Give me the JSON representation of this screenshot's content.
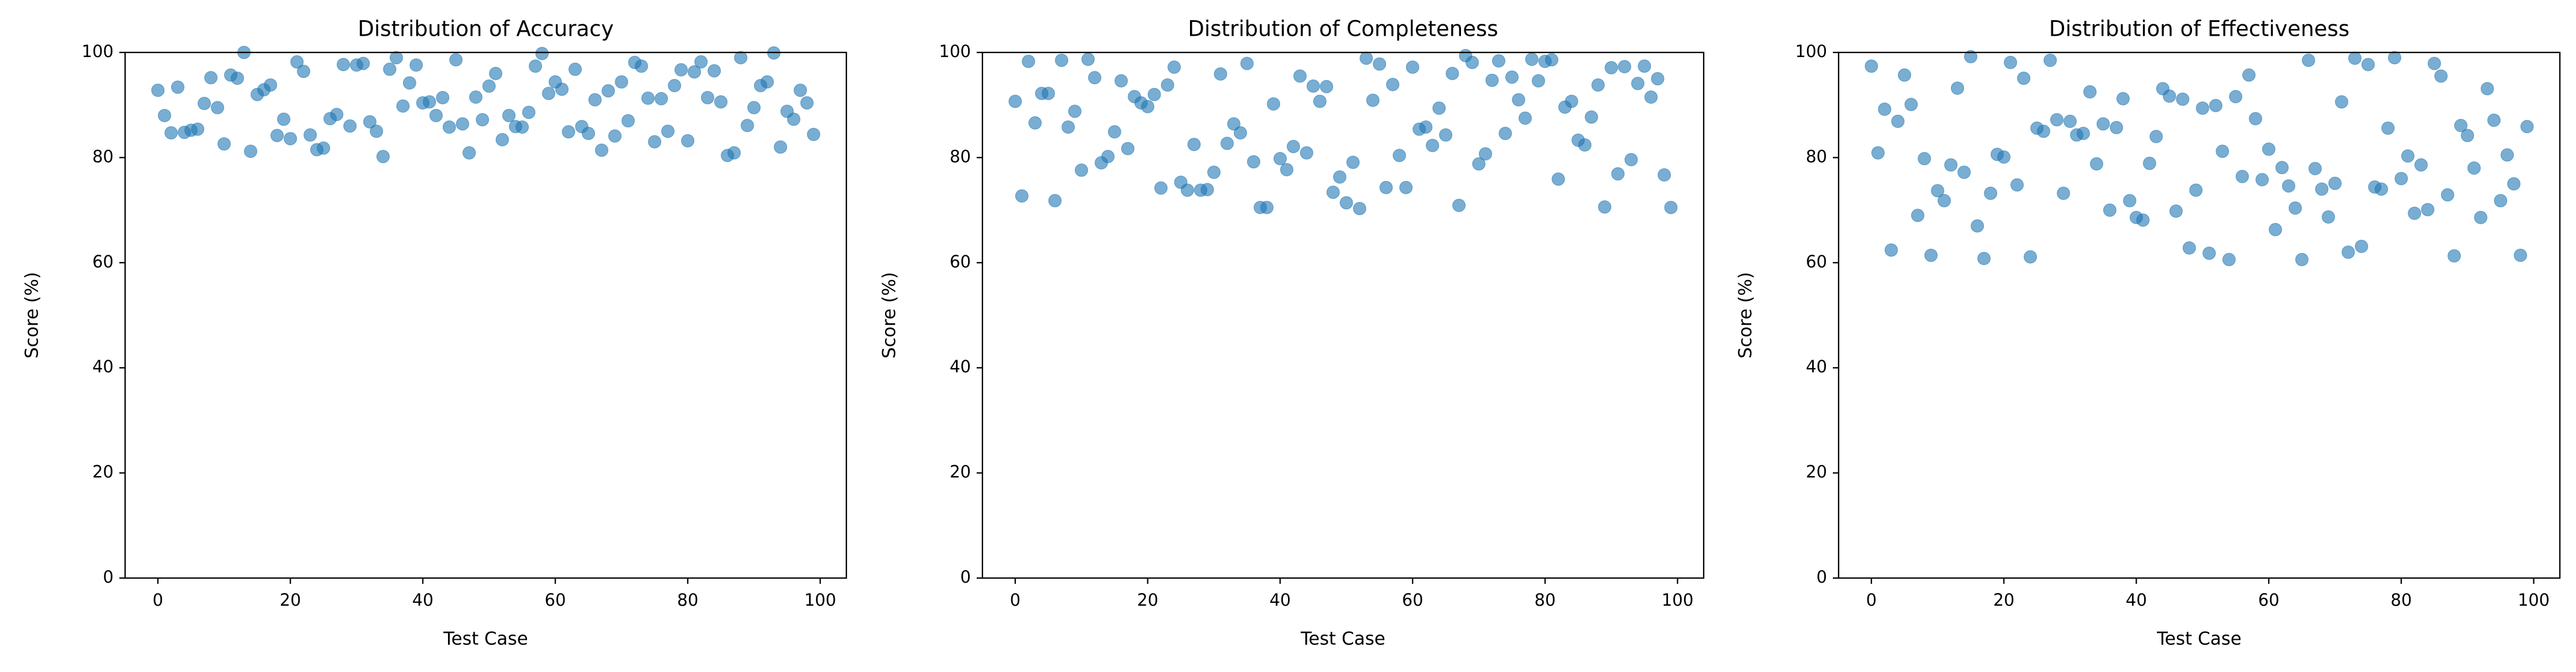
{
  "chart_data": [
    {
      "type": "scatter",
      "title": "Distribution of Accuracy",
      "xlabel": "Test Case",
      "ylabel": "Score (%)",
      "color": "#1f77b4",
      "x": [
        0,
        1,
        2,
        3,
        4,
        5,
        6,
        7,
        8,
        9,
        10,
        11,
        12,
        13,
        14,
        15,
        16,
        17,
        18,
        19,
        20,
        21,
        22,
        23,
        24,
        25,
        26,
        27,
        28,
        29,
        30,
        31,
        32,
        33,
        34,
        35,
        36,
        37,
        38,
        39,
        40,
        41,
        42,
        43,
        44,
        45,
        46,
        47,
        48,
        49,
        50,
        51,
        52,
        53,
        54,
        55,
        56,
        57,
        58,
        59,
        60,
        61,
        62,
        63,
        64,
        65,
        66,
        67,
        68,
        69,
        70,
        71,
        72,
        73,
        74,
        75,
        76,
        77,
        78,
        79,
        80,
        81,
        82,
        83,
        84,
        85,
        86,
        87,
        88,
        89,
        90,
        91,
        92,
        93,
        94,
        95,
        96,
        97,
        98,
        99
      ],
      "values": [
        92.8,
        88,
        84.7,
        93.4,
        84.8,
        85.2,
        85.4,
        90.3,
        95.2,
        89.5,
        82.6,
        95.7,
        95.1,
        100,
        81.2,
        92,
        92.9,
        93.8,
        84.2,
        87.3,
        83.6,
        98.2,
        96.4,
        84.3,
        81.5,
        81.8,
        87.4,
        88.2,
        97.7,
        86,
        97.6,
        97.9,
        86.8,
        85,
        80.2,
        96.8,
        99,
        89.8,
        94.2,
        97.6,
        90.4,
        90.6,
        88,
        91.4,
        85.8,
        98.6,
        86.4,
        80.9,
        91.5,
        87.2,
        93.6,
        96,
        83.4,
        88,
        85.9,
        85.8,
        88.6,
        97.4,
        99.8,
        92.2,
        94.4,
        93,
        84.9,
        96.8,
        85.9,
        84.6,
        91,
        81.4,
        92.7,
        84.1,
        94.4,
        87,
        98.1,
        97.4,
        91.3,
        83,
        91.2,
        85,
        93.7,
        96.7,
        83.2,
        96.3,
        98.2,
        91.4,
        96.5,
        90.6,
        80.4,
        80.9,
        99,
        86.1,
        89.5,
        93.7,
        94.4,
        99.9,
        82,
        88.8,
        87.3,
        92.8,
        90.4,
        84.4
      ],
      "xlim": [
        -4.95,
        103.95
      ],
      "xticks": [
        0,
        20,
        40,
        60,
        80,
        100
      ],
      "ylim": [
        0,
        100
      ],
      "yticks": [
        0,
        20,
        40,
        60,
        80,
        100
      ]
    },
    {
      "type": "scatter",
      "title": "Distribution of Completeness",
      "xlabel": "Test Case",
      "ylabel": "Score (%)",
      "color": "#1f77b4",
      "x": [
        0,
        1,
        2,
        3,
        4,
        5,
        6,
        7,
        8,
        9,
        10,
        11,
        12,
        13,
        14,
        15,
        16,
        17,
        18,
        19,
        20,
        21,
        22,
        23,
        24,
        25,
        26,
        27,
        28,
        29,
        30,
        31,
        32,
        33,
        34,
        35,
        36,
        37,
        38,
        39,
        40,
        41,
        42,
        43,
        44,
        45,
        46,
        47,
        48,
        49,
        50,
        51,
        52,
        53,
        54,
        55,
        56,
        57,
        58,
        59,
        60,
        61,
        62,
        63,
        64,
        65,
        66,
        67,
        68,
        69,
        70,
        71,
        72,
        73,
        74,
        75,
        76,
        77,
        78,
        79,
        80,
        81,
        82,
        83,
        84,
        85,
        86,
        87,
        88,
        89,
        90,
        91,
        92,
        93,
        94,
        95,
        96,
        97,
        98,
        99
      ],
      "values": [
        90.7,
        72.7,
        98.3,
        86.6,
        92.2,
        92.2,
        71.8,
        98.5,
        85.8,
        88.8,
        77.6,
        98.7,
        95.2,
        79,
        80.2,
        84.9,
        94.6,
        81.7,
        91.6,
        90.4,
        89.7,
        92,
        74.2,
        93.8,
        97.2,
        75.3,
        73.8,
        82.5,
        73.8,
        73.9,
        77.2,
        95.9,
        82.7,
        86.4,
        84.7,
        97.9,
        79.2,
        70.5,
        70.5,
        90.2,
        79.8,
        77.7,
        82.1,
        95.5,
        80.9,
        93.6,
        90.7,
        93.5,
        73.4,
        76.3,
        71.4,
        79.1,
        70.3,
        98.9,
        90.9,
        97.8,
        74.3,
        93.9,
        80.4,
        74.3,
        97.2,
        85.4,
        85.8,
        82.3,
        89.4,
        84.3,
        96,
        70.9,
        99.4,
        98.1,
        78.8,
        80.7,
        94.7,
        98.4,
        84.6,
        95.3,
        91,
        87.5,
        98.7,
        94.6,
        98.3,
        98.6,
        75.9,
        89.6,
        90.7,
        83.3,
        82.4,
        87.7,
        93.8,
        70.6,
        97.1,
        76.9,
        97.3,
        79.6,
        94.1,
        97.4,
        91.5,
        95,
        76.7,
        70.5
      ],
      "xlim": [
        -4.95,
        103.95
      ],
      "xticks": [
        0,
        20,
        40,
        60,
        80,
        100
      ],
      "ylim": [
        0,
        100
      ],
      "yticks": [
        0,
        20,
        40,
        60,
        80,
        100
      ]
    },
    {
      "type": "scatter",
      "title": "Distribution of Effectiveness",
      "xlabel": "Test Case",
      "ylabel": "Score (%)",
      "color": "#1f77b4",
      "x": [
        0,
        1,
        2,
        3,
        4,
        5,
        6,
        7,
        8,
        9,
        10,
        11,
        12,
        13,
        14,
        15,
        16,
        17,
        18,
        19,
        20,
        21,
        22,
        23,
        24,
        25,
        26,
        27,
        28,
        29,
        30,
        31,
        32,
        33,
        34,
        35,
        36,
        37,
        38,
        39,
        40,
        41,
        42,
        43,
        44,
        45,
        46,
        47,
        48,
        49,
        50,
        51,
        52,
        53,
        54,
        55,
        56,
        57,
        58,
        59,
        60,
        61,
        62,
        63,
        64,
        65,
        66,
        67,
        68,
        69,
        70,
        71,
        72,
        73,
        74,
        75,
        76,
        77,
        78,
        79,
        80,
        81,
        82,
        83,
        84,
        85,
        86,
        87,
        88,
        89,
        90,
        91,
        92,
        93,
        94,
        95,
        96,
        97,
        98,
        99
      ],
      "values": [
        97.4,
        80.9,
        89.2,
        62.4,
        86.9,
        95.7,
        90.1,
        69,
        79.8,
        61.4,
        73.7,
        71.8,
        78.6,
        93.2,
        77.2,
        99.2,
        67,
        60.8,
        73.2,
        80.6,
        80.1,
        98.1,
        74.8,
        95.1,
        61.1,
        85.6,
        85,
        98.5,
        87.2,
        73.2,
        86.9,
        84.3,
        84.6,
        92.5,
        78.8,
        86.4,
        70,
        85.7,
        91.2,
        71.8,
        68.6,
        68.1,
        78.9,
        84,
        93.1,
        91.7,
        69.8,
        91.1,
        62.8,
        73.8,
        89.4,
        61.8,
        89.9,
        81.2,
        60.6,
        91.6,
        76.4,
        95.7,
        87.4,
        75.8,
        81.6,
        66.3,
        78.1,
        74.6,
        70.4,
        60.6,
        98.5,
        77.9,
        74,
        68.7,
        75.1,
        90.6,
        62,
        98.9,
        63.1,
        97.7,
        74.4,
        74,
        85.6,
        99,
        76,
        80.3,
        69.4,
        78.6,
        70.1,
        97.9,
        95.5,
        72.9,
        61.3,
        86.1,
        84.2,
        78,
        68.6,
        93.1,
        87.1,
        71.8,
        80.5,
        75,
        61.4,
        85.9
      ],
      "xlim": [
        -4.95,
        103.95
      ],
      "xticks": [
        0,
        20,
        40,
        60,
        80,
        100
      ],
      "ylim": [
        0,
        100
      ],
      "yticks": [
        0,
        20,
        40,
        60,
        80,
        100
      ]
    }
  ]
}
